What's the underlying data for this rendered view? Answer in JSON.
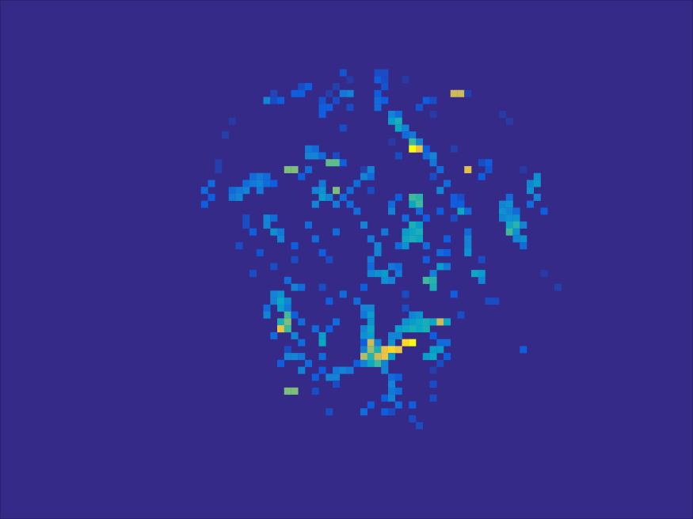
{
  "chart_data": {
    "type": "heatmap",
    "tick_labels": false,
    "n_rows": 75,
    "n_cols": 100,
    "zlim": [
      0,
      1
    ],
    "cells": [
      [
        10,
        49,
        0.12
      ],
      [
        10,
        54,
        0.1
      ],
      [
        10,
        55,
        0.1
      ],
      [
        11,
        50,
        0.05
      ],
      [
        11,
        54,
        0.15
      ],
      [
        11,
        55,
        0.1
      ],
      [
        11,
        58,
        0.05
      ],
      [
        12,
        43,
        0.1
      ],
      [
        12,
        44,
        0.15
      ],
      [
        12,
        48,
        0.06
      ],
      [
        12,
        55,
        0.12
      ],
      [
        13,
        39,
        0.08
      ],
      [
        13,
        42,
        0.15
      ],
      [
        13,
        43,
        0.15
      ],
      [
        13,
        47,
        0.06
      ],
      [
        13,
        49,
        0.25
      ],
      [
        13,
        50,
        0.3
      ],
      [
        13,
        54,
        0.15
      ],
      [
        13,
        65,
        0.85
      ],
      [
        13,
        66,
        0.85
      ],
      [
        13,
        67,
        0.06
      ],
      [
        14,
        38,
        0.3
      ],
      [
        14,
        39,
        0.1
      ],
      [
        14,
        40,
        0.15
      ],
      [
        14,
        46,
        0.12
      ],
      [
        14,
        48,
        0.1
      ],
      [
        14,
        54,
        0.2
      ],
      [
        14,
        55,
        0.15
      ],
      [
        14,
        61,
        0.15
      ],
      [
        14,
        62,
        0.1
      ],
      [
        15,
        46,
        0.15
      ],
      [
        15,
        47,
        0.15
      ],
      [
        15,
        50,
        0.1
      ],
      [
        15,
        54,
        0.2
      ],
      [
        15,
        60,
        0.12
      ],
      [
        16,
        46,
        0.15
      ],
      [
        16,
        56,
        0.3
      ],
      [
        16,
        57,
        0.2
      ],
      [
        16,
        62,
        0.05
      ],
      [
        16,
        72,
        0.05
      ],
      [
        17,
        33,
        0.05
      ],
      [
        17,
        56,
        0.4
      ],
      [
        17,
        57,
        0.5
      ],
      [
        17,
        73,
        0.05
      ],
      [
        18,
        49,
        0.1
      ],
      [
        18,
        57,
        0.45
      ],
      [
        18,
        58,
        0.3
      ],
      [
        19,
        32,
        0.06
      ],
      [
        19,
        58,
        0.2
      ],
      [
        19,
        59,
        0.25
      ],
      [
        20,
        56,
        0.05
      ],
      [
        20,
        59,
        0.6
      ],
      [
        20,
        60,
        0.3
      ],
      [
        21,
        44,
        0.25
      ],
      [
        21,
        45,
        0.2
      ],
      [
        21,
        59,
        1.0
      ],
      [
        21,
        60,
        0.9
      ],
      [
        21,
        61,
        0.15
      ],
      [
        21,
        65,
        0.06
      ],
      [
        22,
        44,
        0.3
      ],
      [
        22,
        45,
        0.3
      ],
      [
        22,
        46,
        0.2
      ],
      [
        22,
        48,
        0.1
      ],
      [
        22,
        57,
        0.1
      ],
      [
        22,
        61,
        0.2
      ],
      [
        22,
        62,
        0.3
      ],
      [
        23,
        31,
        0.06
      ],
      [
        23,
        47,
        0.65
      ],
      [
        23,
        48,
        0.65
      ],
      [
        23,
        49,
        0.15
      ],
      [
        23,
        62,
        0.25
      ],
      [
        23,
        69,
        0.1
      ],
      [
        23,
        70,
        0.15
      ],
      [
        24,
        31,
        0.06
      ],
      [
        24,
        41,
        0.7
      ],
      [
        24,
        42,
        0.7
      ],
      [
        24,
        44,
        0.2
      ],
      [
        24,
        52,
        0.06
      ],
      [
        24,
        53,
        0.3
      ],
      [
        24,
        63,
        0.2
      ],
      [
        24,
        67,
        0.88
      ],
      [
        24,
        70,
        0.12
      ],
      [
        24,
        75,
        0.05
      ],
      [
        25,
        36,
        0.2
      ],
      [
        25,
        37,
        0.25
      ],
      [
        25,
        38,
        0.2
      ],
      [
        25,
        43,
        0.15
      ],
      [
        25,
        52,
        0.3
      ],
      [
        25,
        53,
        0.2
      ],
      [
        25,
        62,
        0.1
      ],
      [
        25,
        69,
        0.15
      ],
      [
        25,
        77,
        0.35
      ],
      [
        26,
        30,
        0.2
      ],
      [
        26,
        35,
        0.2
      ],
      [
        26,
        36,
        0.25
      ],
      [
        26,
        37,
        0.3
      ],
      [
        26,
        38,
        0.2
      ],
      [
        26,
        39,
        0.15
      ],
      [
        26,
        46,
        0.25
      ],
      [
        26,
        51,
        0.2
      ],
      [
        26,
        64,
        0.2
      ],
      [
        26,
        76,
        0.3
      ],
      [
        26,
        77,
        0.4
      ],
      [
        27,
        29,
        0.2
      ],
      [
        27,
        33,
        0.2
      ],
      [
        27,
        34,
        0.25
      ],
      [
        27,
        35,
        0.3
      ],
      [
        27,
        37,
        0.25
      ],
      [
        27,
        45,
        0.3
      ],
      [
        27,
        46,
        0.35
      ],
      [
        27,
        48,
        0.7
      ],
      [
        27,
        50,
        0.2
      ],
      [
        27,
        53,
        0.1
      ],
      [
        27,
        63,
        0.3
      ],
      [
        27,
        76,
        0.35
      ],
      [
        28,
        30,
        0.15
      ],
      [
        28,
        33,
        0.25
      ],
      [
        28,
        34,
        0.3
      ],
      [
        28,
        46,
        0.4
      ],
      [
        28,
        47,
        0.3
      ],
      [
        28,
        49,
        0.2
      ],
      [
        28,
        57,
        0.15
      ],
      [
        28,
        59,
        0.6
      ],
      [
        28,
        60,
        0.55
      ],
      [
        28,
        65,
        0.15
      ],
      [
        28,
        66,
        0.1
      ],
      [
        28,
        73,
        0.2
      ],
      [
        28,
        77,
        0.3
      ],
      [
        29,
        29,
        0.15
      ],
      [
        29,
        45,
        0.3
      ],
      [
        29,
        48,
        0.25
      ],
      [
        29,
        50,
        0.2
      ],
      [
        29,
        56,
        0.2
      ],
      [
        29,
        59,
        0.45
      ],
      [
        29,
        60,
        0.6
      ],
      [
        29,
        65,
        0.15
      ],
      [
        29,
        66,
        0.15
      ],
      [
        29,
        72,
        0.3
      ],
      [
        29,
        73,
        0.35
      ],
      [
        29,
        76,
        0.2
      ],
      [
        30,
        51,
        0.2
      ],
      [
        30,
        56,
        0.3
      ],
      [
        30,
        60,
        0.2
      ],
      [
        30,
        63,
        0.15
      ],
      [
        30,
        66,
        0.45
      ],
      [
        30,
        67,
        0.2
      ],
      [
        30,
        72,
        0.35
      ],
      [
        30,
        73,
        0.3
      ],
      [
        30,
        74,
        0.2
      ],
      [
        30,
        78,
        0.15
      ],
      [
        31,
        35,
        0.1
      ],
      [
        31,
        38,
        0.3
      ],
      [
        31,
        39,
        0.2
      ],
      [
        31,
        58,
        0.2
      ],
      [
        31,
        61,
        0.15
      ],
      [
        31,
        65,
        0.1
      ],
      [
        31,
        72,
        0.3
      ],
      [
        31,
        73,
        0.35
      ],
      [
        31,
        74,
        0.35
      ],
      [
        32,
        35,
        0.1
      ],
      [
        32,
        38,
        0.3
      ],
      [
        32,
        44,
        0.2
      ],
      [
        32,
        52,
        0.3
      ],
      [
        32,
        59,
        0.5
      ],
      [
        32,
        60,
        0.4
      ],
      [
        32,
        73,
        0.45
      ],
      [
        32,
        74,
        0.55
      ],
      [
        32,
        75,
        0.3
      ],
      [
        33,
        36,
        0.15
      ],
      [
        33,
        39,
        0.35
      ],
      [
        33,
        40,
        0.25
      ],
      [
        33,
        48,
        0.2
      ],
      [
        33,
        55,
        0.25
      ],
      [
        33,
        58,
        0.4
      ],
      [
        33,
        59,
        0.45
      ],
      [
        33,
        60,
        0.5
      ],
      [
        33,
        67,
        0.2
      ],
      [
        33,
        73,
        0.6
      ],
      [
        33,
        74,
        0.35
      ],
      [
        34,
        40,
        0.3
      ],
      [
        34,
        45,
        0.2
      ],
      [
        34,
        53,
        0.25
      ],
      [
        34,
        58,
        0.45
      ],
      [
        34,
        59,
        0.5
      ],
      [
        34,
        60,
        0.45
      ],
      [
        34,
        64,
        0.15
      ],
      [
        34,
        67,
        0.3
      ],
      [
        34,
        74,
        0.3
      ],
      [
        34,
        75,
        0.35
      ],
      [
        35,
        34,
        0.1
      ],
      [
        35,
        42,
        0.15
      ],
      [
        35,
        54,
        0.3
      ],
      [
        35,
        57,
        0.2
      ],
      [
        35,
        58,
        0.35
      ],
      [
        35,
        61,
        0.2
      ],
      [
        35,
        67,
        0.3
      ],
      [
        35,
        75,
        0.2
      ],
      [
        36,
        37,
        0.12
      ],
      [
        36,
        46,
        0.15
      ],
      [
        36,
        54,
        0.3
      ],
      [
        36,
        63,
        0.2
      ],
      [
        36,
        64,
        0.15
      ],
      [
        36,
        67,
        0.35
      ],
      [
        37,
        42,
        0.1
      ],
      [
        37,
        47,
        0.1
      ],
      [
        37,
        53,
        0.25
      ],
      [
        37,
        61,
        0.15
      ],
      [
        37,
        69,
        0.1
      ],
      [
        38,
        39,
        0.1
      ],
      [
        38,
        53,
        0.2
      ],
      [
        38,
        56,
        0.25
      ],
      [
        38,
        57,
        0.2
      ],
      [
        38,
        63,
        0.4
      ],
      [
        38,
        64,
        0.25
      ],
      [
        39,
        36,
        0.1
      ],
      [
        39,
        53,
        0.3
      ],
      [
        39,
        54,
        0.35
      ],
      [
        39,
        55,
        0.4
      ],
      [
        39,
        57,
        0.25
      ],
      [
        39,
        62,
        0.3
      ],
      [
        39,
        68,
        0.45
      ],
      [
        39,
        69,
        0.4
      ],
      [
        39,
        78,
        0.05
      ],
      [
        40,
        41,
        0.2
      ],
      [
        40,
        55,
        0.35
      ],
      [
        40,
        56,
        0.3
      ],
      [
        40,
        61,
        0.6
      ],
      [
        40,
        62,
        0.55
      ],
      [
        40,
        69,
        0.3
      ],
      [
        41,
        42,
        0.3
      ],
      [
        41,
        43,
        0.2
      ],
      [
        41,
        46,
        0.1
      ],
      [
        41,
        52,
        0.15
      ],
      [
        41,
        62,
        0.5
      ],
      [
        41,
        80,
        0.06
      ],
      [
        42,
        39,
        0.3
      ],
      [
        42,
        40,
        0.35
      ],
      [
        42,
        49,
        0.2
      ],
      [
        42,
        58,
        0.1
      ],
      [
        42,
        65,
        0.15
      ],
      [
        43,
        39,
        0.3
      ],
      [
        43,
        40,
        0.45
      ],
      [
        43,
        41,
        0.3
      ],
      [
        43,
        47,
        0.15
      ],
      [
        43,
        51,
        0.2
      ],
      [
        43,
        70,
        0.1
      ],
      [
        43,
        71,
        0.1
      ],
      [
        44,
        38,
        0.2
      ],
      [
        44,
        40,
        0.4
      ],
      [
        44,
        41,
        0.25
      ],
      [
        44,
        52,
        0.3
      ],
      [
        44,
        53,
        0.3
      ],
      [
        44,
        58,
        0.1
      ],
      [
        45,
        38,
        0.3
      ],
      [
        45,
        41,
        0.6
      ],
      [
        45,
        42,
        0.15
      ],
      [
        45,
        52,
        0.25
      ],
      [
        45,
        53,
        0.4
      ],
      [
        45,
        59,
        0.3
      ],
      [
        45,
        60,
        0.35
      ],
      [
        45,
        66,
        0.1
      ],
      [
        46,
        40,
        0.5
      ],
      [
        46,
        41,
        0.7
      ],
      [
        46,
        43,
        0.2
      ],
      [
        46,
        48,
        0.2
      ],
      [
        46,
        53,
        0.35
      ],
      [
        46,
        58,
        0.35
      ],
      [
        46,
        59,
        0.4
      ],
      [
        46,
        60,
        0.45
      ],
      [
        46,
        61,
        0.5
      ],
      [
        46,
        62,
        0.45
      ],
      [
        46,
        63,
        0.85
      ],
      [
        46,
        64,
        0.45
      ],
      [
        47,
        40,
        0.9
      ],
      [
        47,
        41,
        0.6
      ],
      [
        47,
        45,
        0.2
      ],
      [
        47,
        47,
        0.15
      ],
      [
        47,
        52,
        0.3
      ],
      [
        47,
        53,
        0.45
      ],
      [
        47,
        57,
        0.4
      ],
      [
        47,
        58,
        0.45
      ],
      [
        47,
        59,
        0.5
      ],
      [
        47,
        60,
        0.45
      ],
      [
        47,
        61,
        0.5
      ],
      [
        48,
        39,
        0.2
      ],
      [
        48,
        42,
        0.3
      ],
      [
        48,
        46,
        0.4
      ],
      [
        48,
        52,
        0.35
      ],
      [
        48,
        53,
        0.4
      ],
      [
        48,
        56,
        0.3
      ],
      [
        48,
        57,
        0.3
      ],
      [
        48,
        62,
        0.15
      ],
      [
        49,
        43,
        0.2
      ],
      [
        49,
        46,
        0.45
      ],
      [
        49,
        52,
        0.15
      ],
      [
        49,
        53,
        0.85
      ],
      [
        49,
        54,
        0.3
      ],
      [
        49,
        56,
        0.35
      ],
      [
        49,
        58,
        0.95
      ],
      [
        49,
        59,
        1.0
      ],
      [
        49,
        63,
        0.2
      ],
      [
        49,
        64,
        0.2
      ],
      [
        50,
        41,
        0.1
      ],
      [
        50,
        52,
        0.3
      ],
      [
        50,
        53,
        0.75
      ],
      [
        50,
        54,
        0.5
      ],
      [
        50,
        55,
        0.9
      ],
      [
        50,
        56,
        0.95
      ],
      [
        50,
        57,
        0.9
      ],
      [
        50,
        62,
        0.4
      ],
      [
        50,
        63,
        0.4
      ],
      [
        50,
        75,
        0.15
      ],
      [
        51,
        41,
        0.3
      ],
      [
        51,
        42,
        0.3
      ],
      [
        51,
        43,
        0.25
      ],
      [
        51,
        46,
        0.2
      ],
      [
        51,
        52,
        0.8
      ],
      [
        51,
        53,
        0.55
      ],
      [
        51,
        54,
        0.85
      ],
      [
        51,
        55,
        0.9
      ],
      [
        51,
        56,
        0.4
      ],
      [
        51,
        61,
        0.4
      ],
      [
        51,
        62,
        0.45
      ],
      [
        51,
        64,
        0.15
      ],
      [
        52,
        40,
        0.15
      ],
      [
        52,
        44,
        0.2
      ],
      [
        52,
        51,
        0.15
      ],
      [
        52,
        52,
        0.3
      ],
      [
        52,
        53,
        0.45
      ],
      [
        52,
        54,
        0.6
      ],
      [
        52,
        55,
        0.3
      ],
      [
        52,
        63,
        0.1
      ],
      [
        53,
        43,
        0.3
      ],
      [
        53,
        46,
        0.15
      ],
      [
        53,
        48,
        0.25
      ],
      [
        53,
        49,
        0.3
      ],
      [
        53,
        50,
        0.25
      ],
      [
        53,
        55,
        0.3
      ],
      [
        53,
        62,
        0.06
      ],
      [
        54,
        45,
        0.15
      ],
      [
        54,
        47,
        0.3
      ],
      [
        54,
        48,
        0.3
      ],
      [
        54,
        56,
        0.2
      ],
      [
        54,
        57,
        0.15
      ],
      [
        55,
        48,
        0.1
      ],
      [
        55,
        56,
        0.3
      ],
      [
        55,
        62,
        0.1
      ],
      [
        56,
        41,
        0.7
      ],
      [
        56,
        42,
        0.7
      ],
      [
        56,
        45,
        0.1
      ],
      [
        56,
        56,
        0.25
      ],
      [
        56,
        57,
        0.2
      ],
      [
        57,
        55,
        0.15
      ],
      [
        57,
        56,
        0.3
      ],
      [
        57,
        62,
        0.1
      ],
      [
        58,
        53,
        0.15
      ],
      [
        58,
        57,
        0.2
      ],
      [
        58,
        59,
        0.15
      ],
      [
        59,
        47,
        0.1
      ],
      [
        59,
        52,
        0.2
      ],
      [
        59,
        55,
        0.15
      ],
      [
        59,
        56,
        0.1
      ],
      [
        60,
        59,
        0.1
      ],
      [
        61,
        60,
        0.1
      ]
    ]
  }
}
